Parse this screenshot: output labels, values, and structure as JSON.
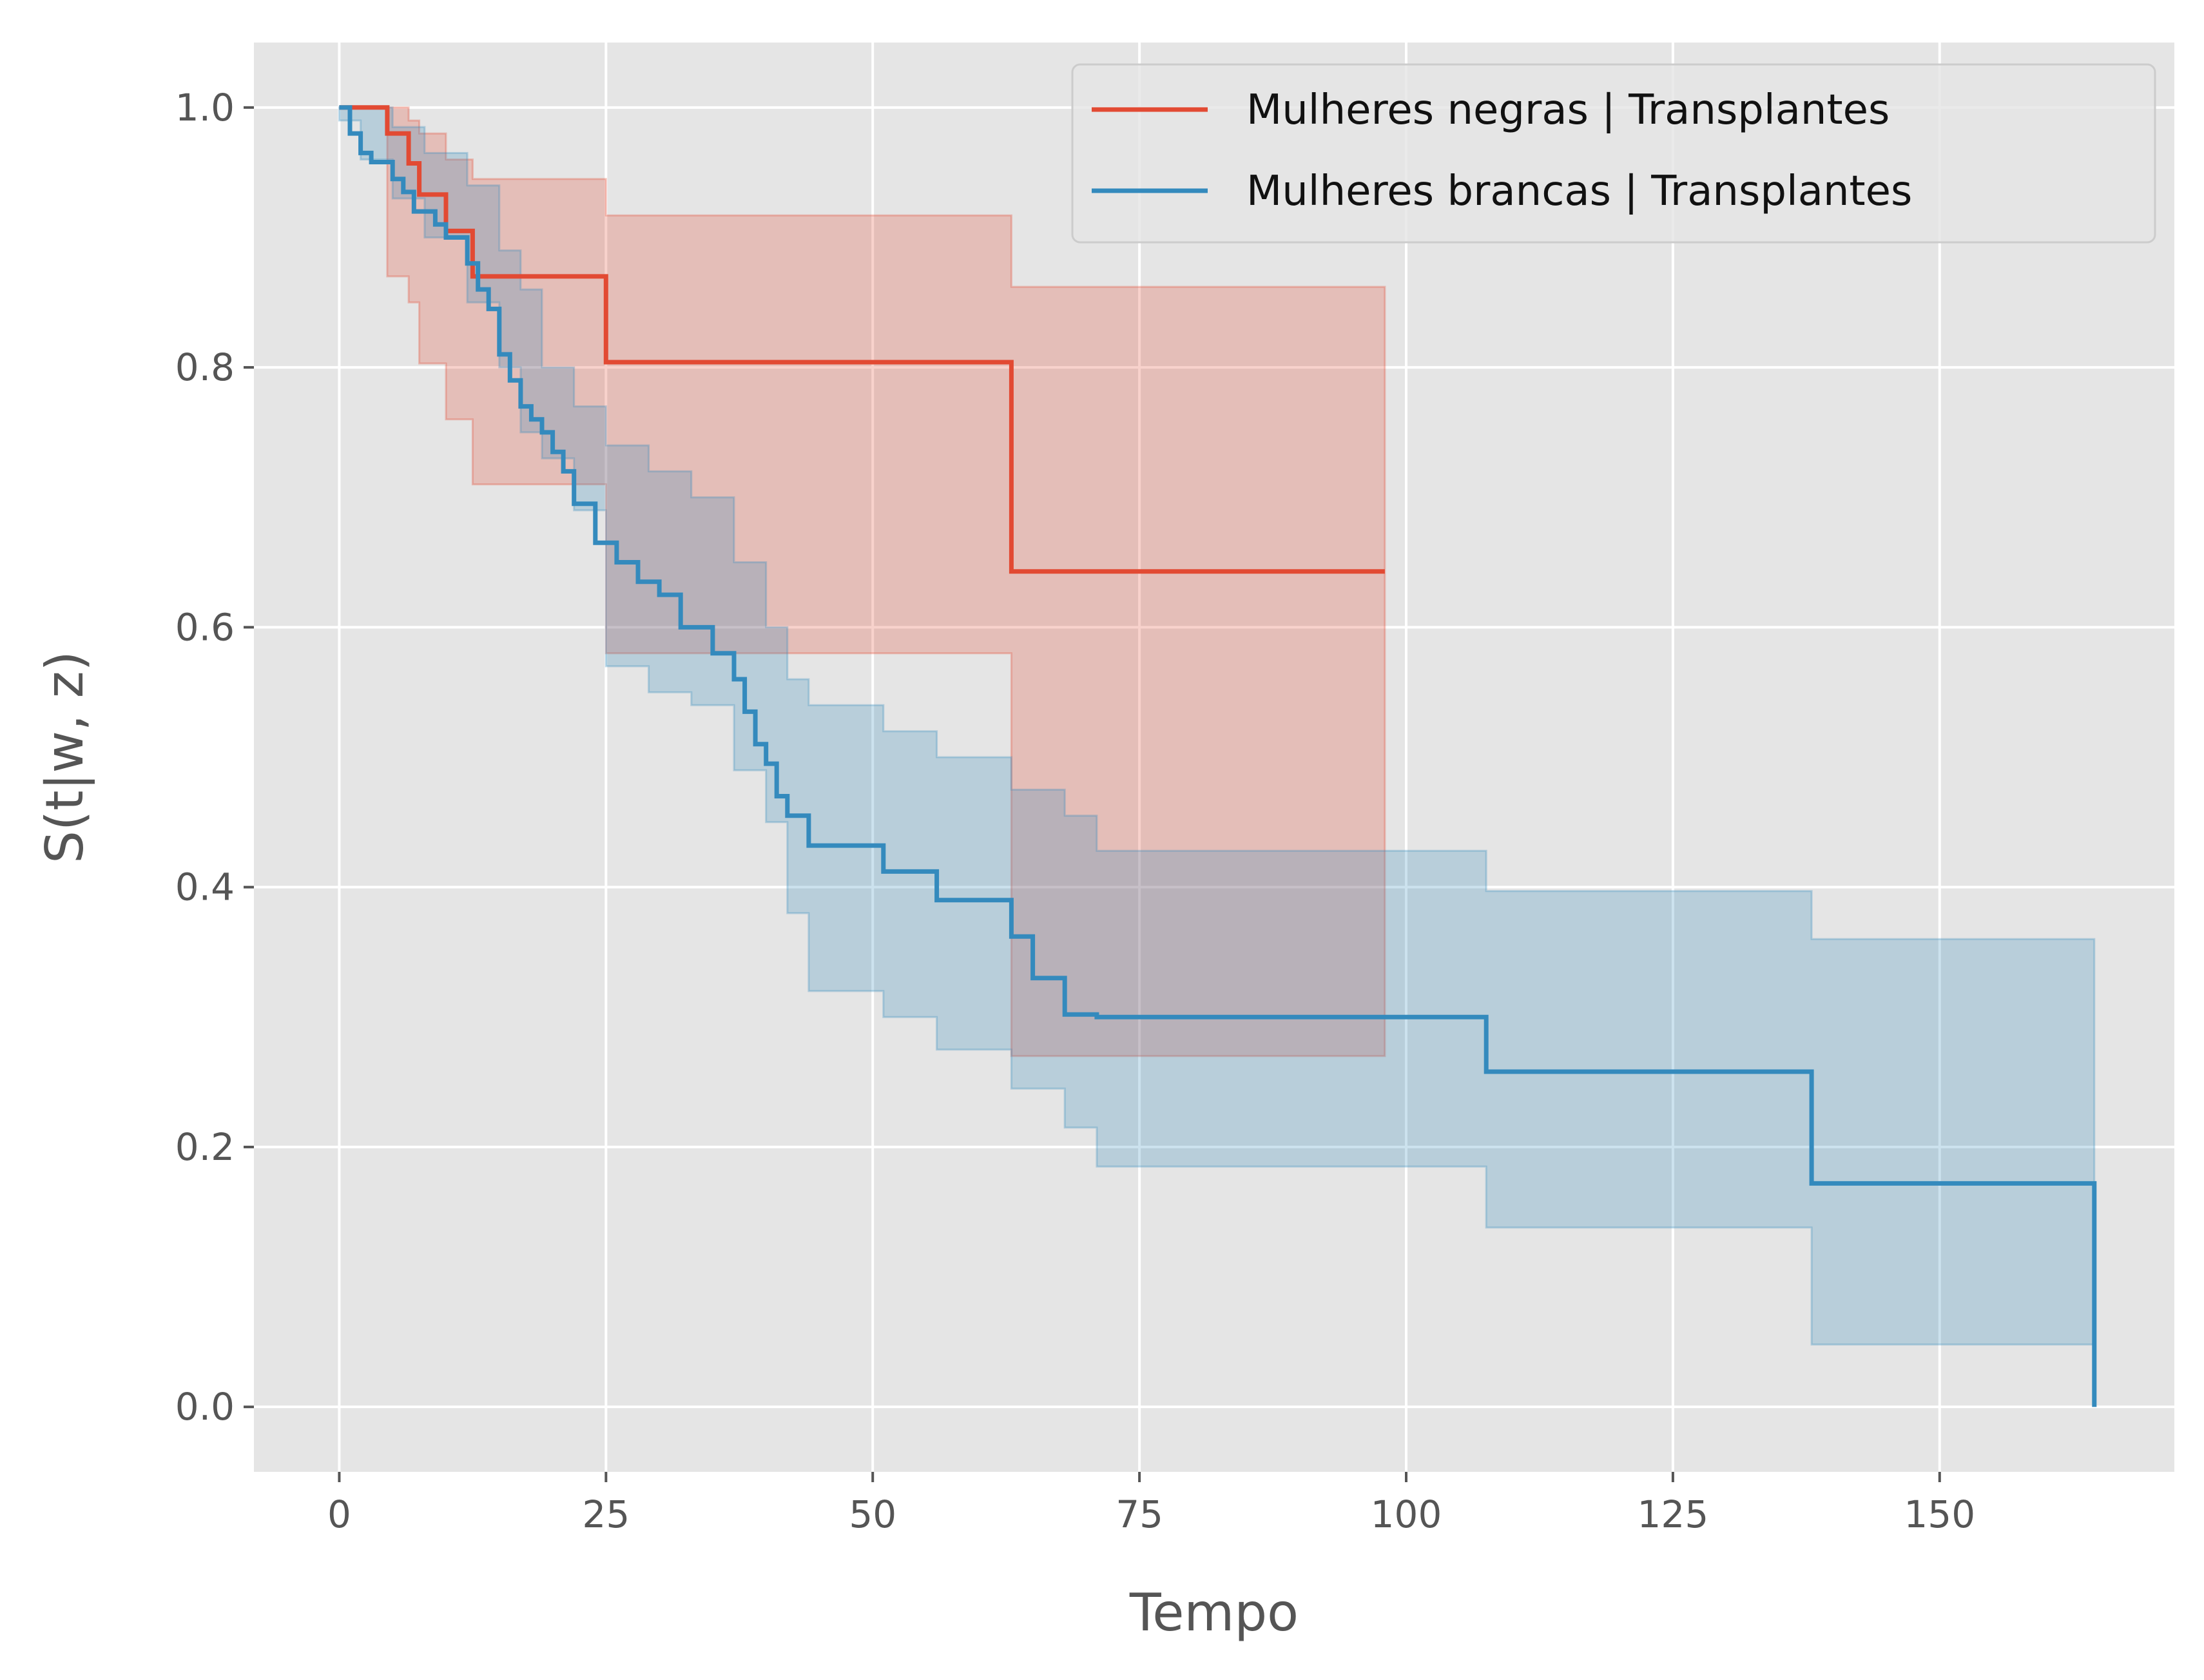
{
  "chart_data": {
    "type": "line",
    "step": true,
    "xlabel": "Tempo",
    "ylabel": "S(t|w, z)",
    "xlim": [
      -8,
      172
    ],
    "ylim": [
      -0.05,
      1.05
    ],
    "xticks": [
      0,
      25,
      50,
      75,
      100,
      125,
      150
    ],
    "yticks": [
      0.0,
      0.2,
      0.4,
      0.6,
      0.8,
      1.0
    ],
    "xtick_labels": [
      "0",
      "25",
      "50",
      "75",
      "100",
      "125",
      "150"
    ],
    "ytick_labels": [
      "0.0",
      "0.2",
      "0.4",
      "0.6",
      "0.8",
      "1.0"
    ],
    "grid": true,
    "legend_position": "top-right",
    "series": [
      {
        "name": "Mulheres negras | Transplantes",
        "color": "#E24A33",
        "x": [
          0,
          4.5,
          6.5,
          7.5,
          10,
          12.5,
          25,
          63,
          98
        ],
        "y": [
          1.0,
          0.98,
          0.957,
          0.933,
          0.905,
          0.87,
          0.804,
          0.643,
          0.643
        ],
        "ci_x": [
          0,
          4.5,
          6.5,
          7.5,
          10,
          12.5,
          25,
          63,
          98
        ],
        "ci_lower": [
          1.0,
          0.87,
          0.85,
          0.803,
          0.76,
          0.71,
          0.58,
          0.27,
          0.27
        ],
        "ci_upper": [
          1.0,
          1.0,
          0.99,
          0.98,
          0.96,
          0.945,
          0.917,
          0.862,
          0.862
        ]
      },
      {
        "name": "Mulheres brancas | Transplantes",
        "color": "#348ABD",
        "x": [
          0,
          1,
          2,
          3,
          5,
          6,
          7,
          9,
          10,
          12,
          13,
          14,
          15,
          16,
          17,
          18,
          19,
          20,
          21,
          22,
          24,
          26,
          28,
          30,
          32,
          35,
          37,
          38,
          39,
          40,
          41,
          42,
          44,
          51,
          56,
          63,
          65,
          68,
          71,
          107.5,
          138,
          164.5
        ],
        "y": [
          1.0,
          0.98,
          0.965,
          0.958,
          0.945,
          0.935,
          0.92,
          0.91,
          0.9,
          0.88,
          0.86,
          0.845,
          0.81,
          0.79,
          0.77,
          0.76,
          0.75,
          0.735,
          0.72,
          0.695,
          0.665,
          0.65,
          0.635,
          0.625,
          0.6,
          0.58,
          0.56,
          0.535,
          0.51,
          0.495,
          0.47,
          0.455,
          0.432,
          0.412,
          0.39,
          0.362,
          0.33,
          0.302,
          0.3,
          0.258,
          0.172,
          0.0
        ],
        "ci_x": [
          0,
          2,
          5,
          8,
          12,
          15,
          17,
          19,
          22,
          25,
          29,
          33,
          37,
          40,
          42,
          44,
          51,
          56,
          63,
          68,
          71,
          107.5,
          138,
          164.5
        ],
        "ci_lower": [
          0.99,
          0.96,
          0.93,
          0.9,
          0.85,
          0.8,
          0.75,
          0.73,
          0.69,
          0.57,
          0.55,
          0.54,
          0.49,
          0.45,
          0.38,
          0.32,
          0.3,
          0.275,
          0.245,
          0.215,
          0.185,
          0.138,
          0.048,
          0.048
        ],
        "ci_upper": [
          1.0,
          1.0,
          0.985,
          0.965,
          0.94,
          0.89,
          0.86,
          0.8,
          0.77,
          0.74,
          0.72,
          0.7,
          0.65,
          0.6,
          0.56,
          0.54,
          0.52,
          0.5,
          0.475,
          0.455,
          0.428,
          0.397,
          0.36,
          0.36
        ]
      }
    ]
  }
}
